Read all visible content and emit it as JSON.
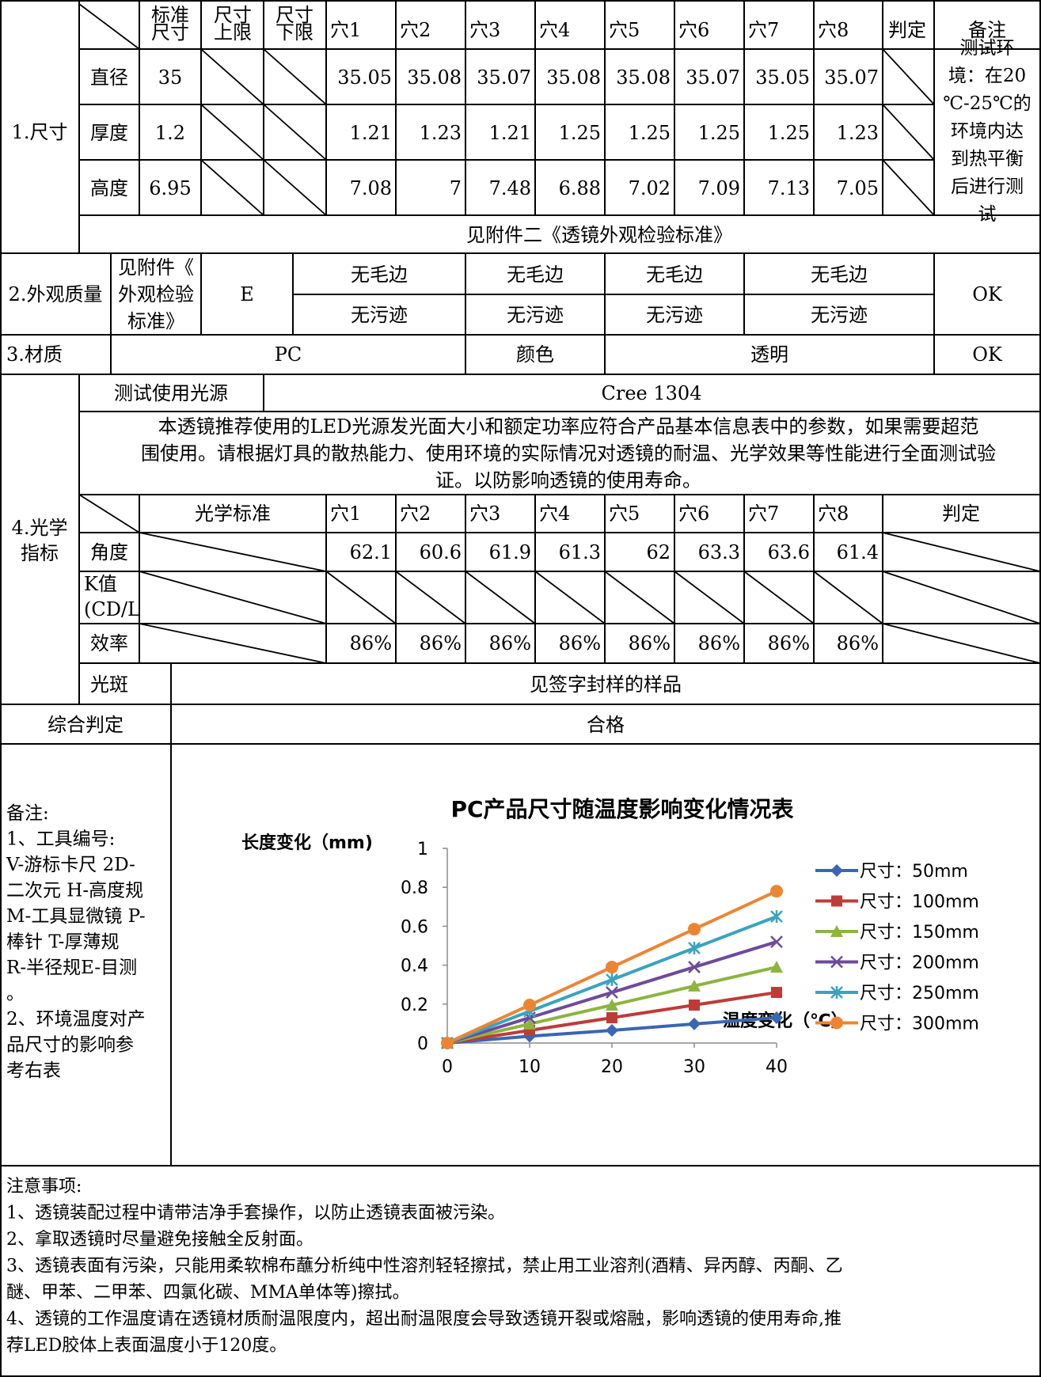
{
  "header": {
    "std_size": "标准尺寸",
    "upper": "尺寸上限",
    "lower": "尺寸下限",
    "holes": [
      "穴1",
      "穴2",
      "穴3",
      "穴4",
      "穴5",
      "穴6",
      "穴7",
      "穴8"
    ],
    "verdict": "判定",
    "remark": "备注"
  },
  "dimension": {
    "section": "1.尺寸",
    "rows": [
      {
        "name": "直径",
        "std": "35",
        "vals": [
          "35.05",
          "35.08",
          "35.07",
          "35.08",
          "35.08",
          "35.07",
          "35.05",
          "35.07"
        ]
      },
      {
        "name": "厚度",
        "std": "1.2",
        "vals": [
          "1.21",
          "1.23",
          "1.21",
          "1.25",
          "1.25",
          "1.25",
          "1.25",
          "1.23"
        ]
      },
      {
        "name": "高度",
        "std": "6.95",
        "vals": [
          "7.08",
          "7",
          "7.48",
          "6.88",
          "7.02",
          "7.09",
          "7.13",
          "7.05"
        ]
      }
    ],
    "remark_lines": [
      "测试环",
      "境：在20",
      "℃-25℃的",
      "环境内达",
      "到热平衡",
      "后进行测",
      "试"
    ],
    "appearance_ref": "见附件二《透镜外观检验标准》"
  },
  "appearance": {
    "section": "2.外观质量",
    "ref_lines": [
      "见附件《",
      "外观检验",
      "标准》"
    ],
    "grade": "E",
    "row1": [
      "无毛边",
      "无毛边",
      "无毛边",
      "无毛边"
    ],
    "row2": [
      "无污迹",
      "无污迹",
      "无污迹",
      "无污迹"
    ],
    "verdict": "OK"
  },
  "material": {
    "section": "3.材质",
    "value": "PC",
    "color_label": "颜色",
    "color_value": "透明",
    "verdict": "OK"
  },
  "optics": {
    "section_lines": [
      "4.光学",
      "指标"
    ],
    "light_label": "测试使用光源",
    "light_value": "Cree 1304",
    "note_lines": [
      "本透镜推荐使用的LED光源发光面大小和额定功率应符合产品基本信息表中的参数，如果需要超范",
      "围使用。请根据灯具的散热能力、使用环境的实际情况对透镜的耐温、光学效果等性能进行全面测试验",
      "证。以防影响透镜的使用寿命。"
    ],
    "std_label": "光学标准",
    "holes": [
      "穴1",
      "穴2",
      "穴3",
      "穴4",
      "穴5",
      "穴6",
      "穴7",
      "穴8"
    ],
    "verdict_label": "判定",
    "angle_label": "角度",
    "angle_vals": [
      "62.1",
      "60.6",
      "61.9",
      "61.3",
      "62",
      "63.3",
      "63.6",
      "61.4"
    ],
    "k_label_lines": [
      "K值",
      "(CD/L"
    ],
    "eff_label": "效率",
    "eff_vals": [
      "86%",
      "86%",
      "86%",
      "86%",
      "86%",
      "86%",
      "86%",
      "86%"
    ],
    "spot_label": "光斑",
    "spot_value": "见签字封样的样品"
  },
  "overall": {
    "label": "综合判定",
    "value": "合格"
  },
  "remarks": {
    "lines": [
      "备注:",
      "1、工具编号:",
      "V-游标卡尺  2D-",
      "二次元 H-高度规",
      "M-工具显微镜 P-",
      "棒针 T-厚薄规",
      "R-半径规E-目测",
      "。",
      "2、环境温度对产",
      "品尺寸的影响参",
      "考右表"
    ]
  },
  "chart_data": {
    "type": "line",
    "title": "PC产品尺寸随温度影响变化情况表",
    "ylabel": "长度变化（mm)",
    "xlabel": "温度变化（℃）",
    "x": [
      0,
      10,
      20,
      30,
      40
    ],
    "xticks": [
      "0",
      "10",
      "20",
      "30",
      "40"
    ],
    "yticks": [
      "0",
      "0.2",
      "0.4",
      "0.6",
      "0.8",
      "1"
    ],
    "ylim": [
      0,
      1
    ],
    "xlim": [
      0,
      40
    ],
    "legend_position": "right",
    "series": [
      {
        "name": "尺寸：50mm",
        "values": [
          0,
          0.035,
          0.065,
          0.098,
          0.13
        ],
        "color": "#3a66b4",
        "marker": "diamond"
      },
      {
        "name": "尺寸：100mm",
        "values": [
          0,
          0.065,
          0.13,
          0.195,
          0.26
        ],
        "color": "#be3b37",
        "marker": "square"
      },
      {
        "name": "尺寸：150mm",
        "values": [
          0,
          0.098,
          0.195,
          0.293,
          0.39
        ],
        "color": "#8db43e",
        "marker": "triangle"
      },
      {
        "name": "尺寸：200mm",
        "values": [
          0,
          0.13,
          0.26,
          0.39,
          0.52
        ],
        "color": "#6e4a9c",
        "marker": "x"
      },
      {
        "name": "尺寸：250mm",
        "values": [
          0,
          0.163,
          0.325,
          0.488,
          0.65
        ],
        "color": "#3aa3bf",
        "marker": "star"
      },
      {
        "name": "尺寸：300mm",
        "values": [
          0,
          0.195,
          0.39,
          0.585,
          0.78
        ],
        "color": "#ec8532",
        "marker": "circle"
      }
    ]
  },
  "notes": {
    "lines": [
      "注意事项:",
      "1、透镜装配过程中请带洁净手套操作，以防止透镜表面被污染。",
      "2、拿取透镜时尽量避免接触全反射面。",
      "3、透镜表面有污染，只能用柔软棉布蘸分析纯中性溶剂轻轻擦拭，禁止用工业溶剂(酒精、异丙醇、丙酮、乙",
      "醚、甲苯、二甲苯、四氯化碳、MMA单体等)擦拭。",
      "4、透镜的工作温度请在透镜材质耐温限度内，超出耐温限度会导致透镜开裂或熔融，影响透镜的使用寿命,推",
      "荐LED胶体上表面温度小于120度。"
    ]
  },
  "colors": {
    "grid": "#000000",
    "chart_grid": "#8c8c8c"
  }
}
